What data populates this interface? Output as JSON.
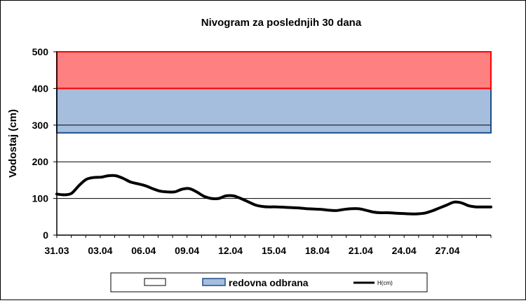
{
  "chart_data": {
    "type": "line",
    "title": "Nivogram za poslednjih 30 dana",
    "ylabel": "Vodostaj (cm)",
    "xlabel": "",
    "ylim": [
      0,
      500
    ],
    "yticks": [
      0,
      100,
      200,
      300,
      400,
      500
    ],
    "x_tick_labels": [
      "31.03",
      "03.04",
      "06.04",
      "09.04",
      "12.04",
      "15.04",
      "18.04",
      "21.04",
      "24.04",
      "27.04"
    ],
    "bands": [
      {
        "name": "",
        "from": 0,
        "to": 279,
        "color": "#ffffff"
      },
      {
        "name": "redovna odbrana",
        "from": 279,
        "to": 400,
        "color": "#a6bedd",
        "edge": "#1f4e8c"
      },
      {
        "name": "",
        "from": 400,
        "to": 500,
        "color": "#ff8080",
        "edge": "#ff0000"
      }
    ],
    "series": [
      {
        "name": "H(cm)",
        "color": "#000000",
        "x": [
          0,
          0.5,
          1,
          1.5,
          2,
          2.5,
          3,
          3.5,
          4,
          4.5,
          5,
          5.5,
          6,
          6.5,
          7,
          7.5,
          8,
          8.5,
          9,
          9.5,
          10,
          10.5,
          11,
          11.5,
          12,
          12.5,
          13,
          13.5,
          14,
          14.5,
          15,
          15.5,
          16,
          16.5,
          17,
          17.5,
          18,
          18.5,
          19,
          19.5,
          20,
          20.5,
          21,
          21.5,
          22,
          22.5,
          23,
          23.5,
          24,
          24.5,
          25,
          25.5,
          26,
          26.5,
          27,
          27.5,
          28,
          28.5,
          29,
          29.5
        ],
        "values": [
          112,
          110,
          114,
          135,
          152,
          157,
          158,
          162,
          162,
          155,
          145,
          140,
          135,
          127,
          120,
          118,
          118,
          125,
          127,
          118,
          106,
          100,
          100,
          107,
          107,
          100,
          91,
          82,
          78,
          77,
          77,
          76,
          75,
          74,
          72,
          71,
          70,
          68,
          67,
          70,
          72,
          72,
          68,
          63,
          61,
          61,
          60,
          59,
          58,
          58,
          60,
          66,
          74,
          82,
          90,
          88,
          80,
          77,
          77,
          77
        ]
      }
    ],
    "legend": {
      "placement": "bottom-center",
      "items": [
        {
          "label": "",
          "kind": "band",
          "color": "#ffffff"
        },
        {
          "label": "redovna odbrana",
          "kind": "band",
          "color": "#a6bedd"
        },
        {
          "label": "H(cm)",
          "kind": "line",
          "color": "#000000"
        }
      ]
    }
  }
}
